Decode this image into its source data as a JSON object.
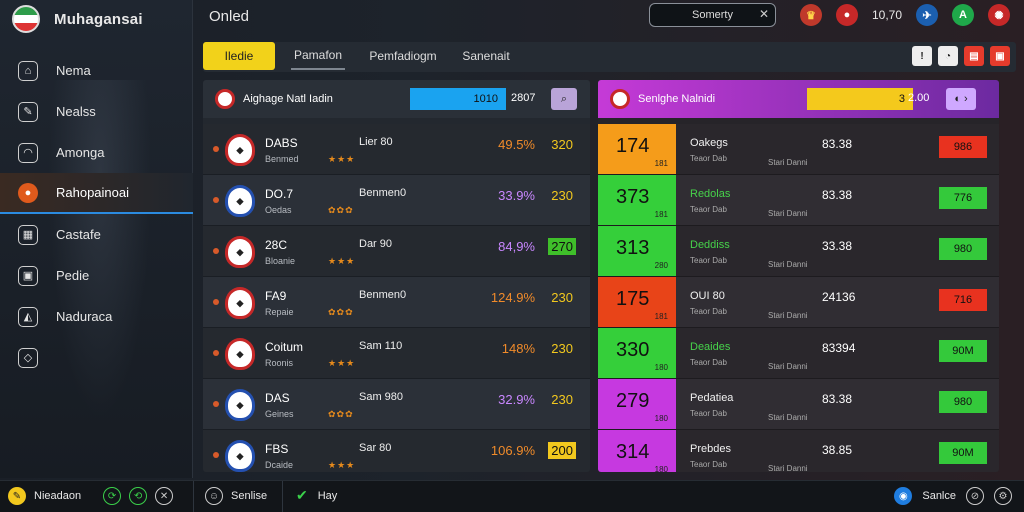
{
  "app": {
    "title": "Muhagansai"
  },
  "sidebar": {
    "items": [
      {
        "label": "Nema",
        "icon": "home-icon",
        "glyph": "⌂"
      },
      {
        "label": "Nealss",
        "icon": "news-icon",
        "glyph": "✎"
      },
      {
        "label": "Amonga",
        "icon": "league-icon",
        "glyph": "◠"
      },
      {
        "label": "Rahopainoai",
        "icon": "match-icon",
        "glyph": "●"
      },
      {
        "label": "Castafe",
        "icon": "calendar-icon",
        "glyph": "▦"
      },
      {
        "label": "Pedie",
        "icon": "profile-icon",
        "glyph": "▣"
      },
      {
        "label": "Naduraca",
        "icon": "shoe-icon",
        "glyph": "◭"
      },
      {
        "label": "",
        "icon": "diamond-icon",
        "glyph": "◇"
      }
    ]
  },
  "topbar": {
    "title": "Onled",
    "search_value": "Somerty",
    "coins": "10,70",
    "badge_letter": "A"
  },
  "tabs": [
    {
      "label": "Iledie"
    },
    {
      "label": "Pamafon"
    },
    {
      "label": "Pemfadiogm"
    },
    {
      "label": "Sanenait"
    }
  ],
  "left_panel": {
    "title": "Aighage Natl Iadin",
    "bar_value": "1010",
    "value": "2807",
    "rows": [
      {
        "name": "DABS",
        "sub": "Benmed",
        "stars": "★★★",
        "meta": "Lier 80",
        "pct": "49.5%",
        "pct_color": "orange",
        "score": "320",
        "score_style": "yellow"
      },
      {
        "name": "DO.7",
        "sub": "Oedas",
        "stars": "✿✿✿",
        "meta": "Benmen0",
        "pct": "33.9%",
        "pct_color": "purple",
        "score": "230",
        "score_style": "yellow"
      },
      {
        "name": "28C",
        "sub": "Bloanie",
        "stars": "★★★",
        "meta": "Dar 90",
        "pct": "84,9%",
        "pct_color": "purple",
        "score": "270",
        "score_style": "greenbox"
      },
      {
        "name": "FA9",
        "sub": "Repaie",
        "stars": "✿✿✿",
        "meta": "Benmen0",
        "pct": "124.9%",
        "pct_color": "orange",
        "score": "230",
        "score_style": "yellow"
      },
      {
        "name": "Coitum",
        "sub": "Roonis",
        "stars": "★★★",
        "meta": "Sam 110",
        "pct": "148%",
        "pct_color": "orange",
        "score": "230",
        "score_style": "yellow"
      },
      {
        "name": "DAS",
        "sub": "Geines",
        "stars": "✿✿✿",
        "meta": "Sam 980",
        "pct": "32.9%",
        "pct_color": "purple",
        "score": "230",
        "score_style": "yellow"
      },
      {
        "name": "FBS",
        "sub": "Dcaide",
        "stars": "★★★",
        "meta": "Sar 80",
        "pct": "106.9%",
        "pct_color": "orange",
        "score": "200",
        "score_style": "yellowbox"
      }
    ]
  },
  "right_panel": {
    "title": "Senlghe Nalnidi",
    "bar_value": "3",
    "value": "2.00",
    "rows": [
      {
        "big": "174",
        "small": "181",
        "color": "orange",
        "name": "Oakegs",
        "name_color": "white",
        "sub": "Teaor Dab",
        "val": "83.38",
        "sub2": "Stari Danni",
        "chip": "986",
        "chip_color": "red"
      },
      {
        "big": "373",
        "small": "181",
        "color": "green",
        "name": "Redolas",
        "name_color": "green",
        "sub": "Teaor Dab",
        "val": "83.38",
        "sub2": "Stari Danni",
        "chip": "776",
        "chip_color": "green"
      },
      {
        "big": "313",
        "small": "280",
        "color": "green",
        "name": "Deddiss",
        "name_color": "green",
        "sub": "Teaor Dab",
        "val": "33.38",
        "sub2": "Stari Danni",
        "chip": "980",
        "chip_color": "green"
      },
      {
        "big": "175",
        "small": "181",
        "color": "red",
        "name": "OUI 80",
        "name_color": "white",
        "sub": "Teaor Dab",
        "val": "24136",
        "sub2": "Stari Danni",
        "chip": "716",
        "chip_color": "red"
      },
      {
        "big": "330",
        "small": "180",
        "color": "green",
        "name": "Deaides",
        "name_color": "green",
        "sub": "Teaor Dab",
        "val": "83394",
        "sub2": "Stari Danni",
        "chip": "90M",
        "chip_color": "green"
      },
      {
        "big": "279",
        "small": "180",
        "color": "purple",
        "name": "Pedatiea",
        "name_color": "white",
        "sub": "Teaor Dab",
        "val": "83.38",
        "sub2": "Stari Danni",
        "chip": "980",
        "chip_color": "green"
      },
      {
        "big": "314",
        "small": "180",
        "color": "purple",
        "name": "Prebdes",
        "name_color": "white",
        "sub": "Teaor Dab",
        "val": "38.85",
        "sub2": "Stari Danni",
        "chip": "90M",
        "chip_color": "green"
      }
    ]
  },
  "bottombar": {
    "left_label": "Nieadaon",
    "mid_label": "Senlise",
    "mid2_label": "Hay",
    "right_label": "Sanlce"
  }
}
